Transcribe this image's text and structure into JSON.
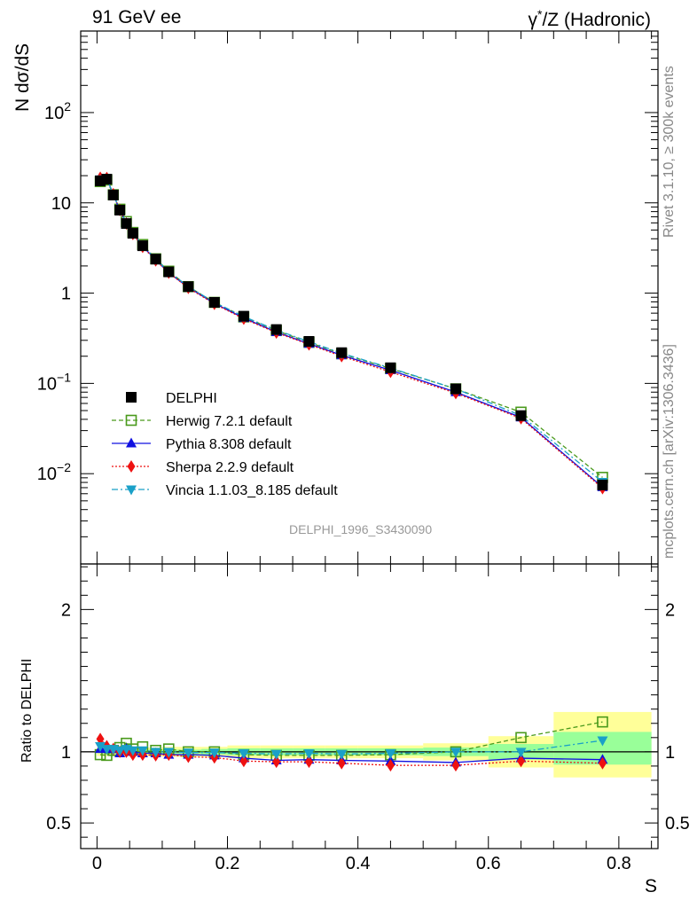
{
  "header": {
    "left": "91 GeV ee",
    "right_prefix": "γ",
    "right_sup": "*",
    "right_rest": "/Z (Hadronic)"
  },
  "side_text": {
    "rivet": "Rivet 3.1.10, ≥ 300k events",
    "mcplots": "mcplots.cern.ch [arXiv:1306.3436]"
  },
  "colors": {
    "data": "#000000",
    "herwig": "#4a9a1c",
    "pythia": "#1010e0",
    "sherpa": "#ee1111",
    "vincia": "#1aa0c8",
    "band_yellow": "#ffff99",
    "band_green": "#99ff99"
  },
  "chart_data": [
    {
      "type": "scatter",
      "title": "",
      "analysis_label": "DELPHI_1996_S3430090",
      "ylabel": "N dσ/dS",
      "xlabel": "S",
      "yscale": "log",
      "ylim": [
        0.001,
        800
      ],
      "xlim": [
        -0.025,
        0.86
      ],
      "y_ticks": [
        {
          "value": 0.01,
          "base": "10",
          "exp": "−2"
        },
        {
          "value": 0.1,
          "base": "10",
          "exp": "−1"
        },
        {
          "value": 1,
          "base": "1",
          "exp": ""
        },
        {
          "value": 10,
          "base": "10",
          "exp": ""
        },
        {
          "value": 100,
          "base": "10",
          "exp": "2"
        }
      ],
      "legend_position": "lower-left",
      "x": [
        0.005,
        0.015,
        0.025,
        0.035,
        0.045,
        0.055,
        0.07,
        0.09,
        0.11,
        0.14,
        0.18,
        0.225,
        0.275,
        0.325,
        0.375,
        0.45,
        0.55,
        0.65,
        0.775
      ],
      "series": [
        {
          "name": "DELPHI",
          "key": "data",
          "marker": "square-filled",
          "line": "none",
          "values": [
            17.5,
            18.3,
            12.2,
            8.3,
            5.9,
            4.6,
            3.35,
            2.38,
            1.72,
            1.18,
            0.79,
            0.555,
            0.395,
            0.292,
            0.219,
            0.149,
            0.087,
            0.044,
            0.0075
          ]
        },
        {
          "name": "Herwig 7.2.1 default",
          "key": "herwig",
          "marker": "square-open",
          "line": "dashed",
          "values": [
            17.2,
            17.9,
            12.3,
            8.5,
            6.2,
            4.7,
            3.45,
            2.4,
            1.75,
            1.18,
            0.79,
            0.545,
            0.385,
            0.285,
            0.213,
            0.146,
            0.087,
            0.048,
            0.0091
          ]
        },
        {
          "name": "Pythia 8.308 default",
          "key": "pythia",
          "marker": "triangle-up",
          "line": "solid",
          "values": [
            17.8,
            18.6,
            12.4,
            8.2,
            6.0,
            4.6,
            3.3,
            2.35,
            1.68,
            1.16,
            0.77,
            0.53,
            0.37,
            0.275,
            0.205,
            0.14,
            0.08,
            0.042,
            0.0071
          ]
        },
        {
          "name": "Sherpa 2.2.9 default",
          "key": "sherpa",
          "marker": "diamond",
          "line": "dotted",
          "values": [
            19.0,
            18.9,
            12.5,
            8.3,
            5.9,
            4.5,
            3.25,
            2.3,
            1.68,
            1.14,
            0.76,
            0.52,
            0.365,
            0.27,
            0.2,
            0.134,
            0.078,
            0.041,
            0.0069
          ]
        },
        {
          "name": "Vincia 1.1.03_8.185 default",
          "key": "vincia",
          "marker": "triangle-down",
          "line": "dashdot",
          "values": [
            18.2,
            18.7,
            12.4,
            8.4,
            6.0,
            4.65,
            3.38,
            2.38,
            1.73,
            1.18,
            0.79,
            0.55,
            0.39,
            0.29,
            0.216,
            0.148,
            0.087,
            0.044,
            0.0081
          ]
        }
      ]
    },
    {
      "type": "scatter",
      "title": "",
      "ylabel": "Ratio to DELPHI",
      "xlabel": "S",
      "ylim": [
        0.32,
        2.32
      ],
      "xlim": [
        -0.025,
        0.86
      ],
      "x_ticks": [
        0,
        0.2,
        0.4,
        0.6,
        0.8
      ],
      "y_ticks": [
        0.5,
        1,
        2
      ],
      "x_tick_labels": [
        "0",
        "0.2",
        "0.4",
        "0.6",
        "0.8"
      ],
      "y_tick_labels": [
        "0.5",
        "1",
        "2"
      ],
      "uncertainty_bands": [
        {
          "x_low": 0.0,
          "x_high": 0.01,
          "yellow": [
            0.97,
            1.03
          ],
          "green": [
            0.99,
            1.01
          ]
        },
        {
          "x_low": 0.01,
          "x_high": 0.1,
          "yellow": [
            0.97,
            1.03
          ],
          "green": [
            0.985,
            1.015
          ]
        },
        {
          "x_low": 0.1,
          "x_high": 0.16,
          "yellow": [
            0.965,
            1.035
          ],
          "green": [
            0.985,
            1.015
          ]
        },
        {
          "x_low": 0.16,
          "x_high": 0.2,
          "yellow": [
            0.965,
            1.035
          ],
          "green": [
            0.98,
            1.02
          ]
        },
        {
          "x_low": 0.2,
          "x_high": 0.25,
          "yellow": [
            0.955,
            1.045
          ],
          "green": [
            0.975,
            1.025
          ]
        },
        {
          "x_low": 0.25,
          "x_high": 0.3,
          "yellow": [
            0.955,
            1.045
          ],
          "green": [
            0.975,
            1.025
          ]
        },
        {
          "x_low": 0.3,
          "x_high": 0.35,
          "yellow": [
            0.955,
            1.045
          ],
          "green": [
            0.975,
            1.025
          ]
        },
        {
          "x_low": 0.35,
          "x_high": 0.4,
          "yellow": [
            0.955,
            1.045
          ],
          "green": [
            0.975,
            1.025
          ]
        },
        {
          "x_low": 0.4,
          "x_high": 0.5,
          "yellow": [
            0.955,
            1.045
          ],
          "green": [
            0.975,
            1.025
          ]
        },
        {
          "x_low": 0.5,
          "x_high": 0.6,
          "yellow": [
            0.94,
            1.06
          ],
          "green": [
            0.97,
            1.03
          ]
        },
        {
          "x_low": 0.6,
          "x_high": 0.7,
          "yellow": [
            0.89,
            1.11
          ],
          "green": [
            0.945,
            1.055
          ]
        },
        {
          "x_low": 0.7,
          "x_high": 0.85,
          "yellow": [
            0.82,
            1.28
          ],
          "green": [
            0.91,
            1.14
          ]
        }
      ],
      "x": [
        0.005,
        0.015,
        0.025,
        0.035,
        0.045,
        0.055,
        0.07,
        0.09,
        0.11,
        0.14,
        0.18,
        0.225,
        0.275,
        0.325,
        0.375,
        0.45,
        0.55,
        0.65,
        0.775
      ],
      "series": [
        {
          "name": "Herwig 7.2.1 default",
          "key": "herwig",
          "marker": "square-open",
          "line": "dashed",
          "values": [
            0.98,
            0.975,
            1.01,
            1.03,
            1.06,
            1.02,
            1.035,
            1.01,
            1.02,
            1.0,
            1.0,
            0.98,
            0.975,
            0.975,
            0.975,
            0.98,
            1.0,
            1.1,
            1.21
          ]
        },
        {
          "name": "Pythia 8.308 default",
          "key": "pythia",
          "marker": "triangle-up",
          "line": "solid",
          "values": [
            1.02,
            1.02,
            1.02,
            0.99,
            1.02,
            1.0,
            0.99,
            0.99,
            0.98,
            0.98,
            0.975,
            0.955,
            0.94,
            0.945,
            0.94,
            0.935,
            0.925,
            0.955,
            0.945
          ]
        },
        {
          "name": "Sherpa 2.2.9 default",
          "key": "sherpa",
          "marker": "diamond",
          "line": "dotted",
          "values": [
            1.09,
            1.04,
            1.02,
            1.0,
            1.0,
            0.98,
            0.98,
            0.975,
            0.98,
            0.965,
            0.96,
            0.935,
            0.93,
            0.93,
            0.92,
            0.905,
            0.905,
            0.935,
            0.92
          ]
        },
        {
          "name": "Vincia 1.1.03_8.185 default",
          "key": "vincia",
          "marker": "triangle-down",
          "line": "dashdot",
          "values": [
            1.04,
            1.02,
            1.02,
            1.01,
            1.02,
            1.01,
            1.01,
            1.0,
            1.0,
            0.995,
            0.995,
            0.99,
            0.985,
            0.99,
            0.985,
            0.99,
            1.0,
            1.0,
            1.08
          ]
        }
      ]
    }
  ]
}
